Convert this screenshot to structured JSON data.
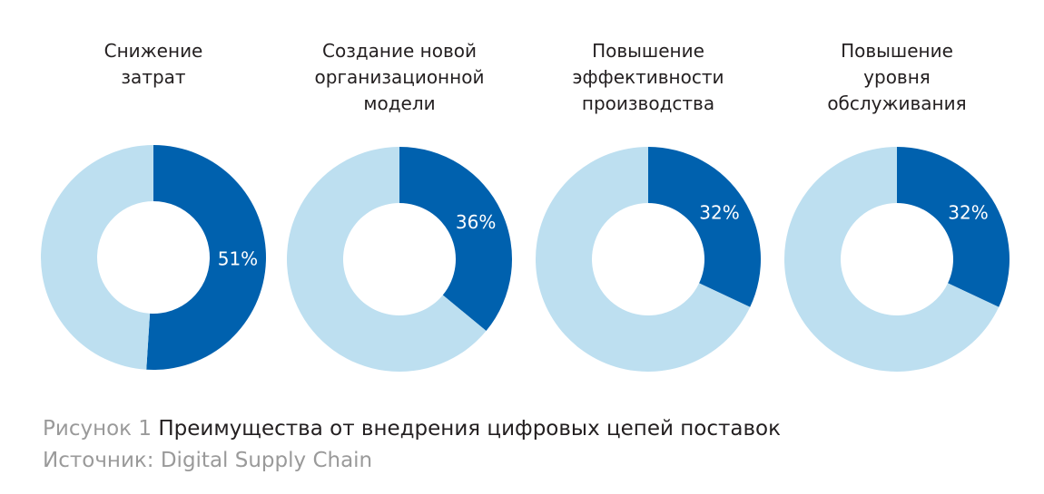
{
  "colors": {
    "primary": "#0061ae",
    "secondary": "#bddff0",
    "text": "#231f20",
    "muted": "#9a9a9a"
  },
  "chart_data": [
    {
      "type": "pie",
      "title": "Снижение\nзатрат",
      "values": [
        51,
        49
      ],
      "labels": [
        "51%",
        ""
      ]
    },
    {
      "type": "pie",
      "title": "Создание новой\nорганизационной\nмодели",
      "values": [
        36,
        64
      ],
      "labels": [
        "36%",
        ""
      ]
    },
    {
      "type": "pie",
      "title": "Повышение\nэффективности\nпроизводства",
      "values": [
        32,
        68
      ],
      "labels": [
        "32%",
        ""
      ]
    },
    {
      "type": "pie",
      "title": "Повышение\nуровня\nобслуживания",
      "values": [
        32,
        68
      ],
      "labels": [
        "32%",
        ""
      ]
    }
  ],
  "caption": {
    "figure_label": "Рисунок 1",
    "figure_text": "Преимущества от внедрения цифровых цепей поставок",
    "source": "Источник: Digital Supply Chain"
  }
}
